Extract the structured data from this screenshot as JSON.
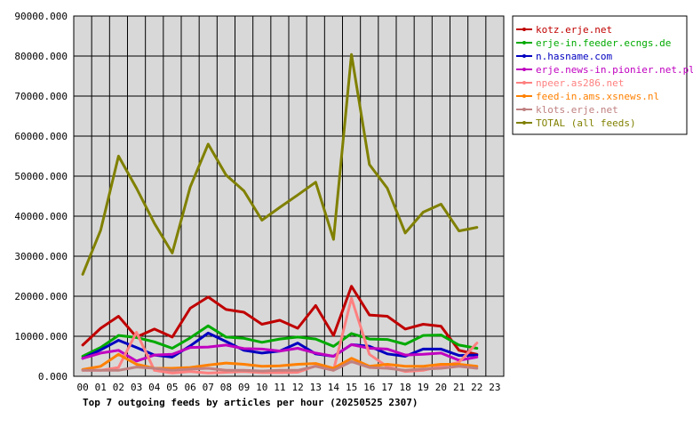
{
  "chart_data": {
    "type": "line",
    "title": "Top 7 outgoing feeds by articles per hour (20250525 2307)",
    "x_ticks": [
      "00",
      "01",
      "02",
      "03",
      "04",
      "05",
      "06",
      "07",
      "08",
      "09",
      "10",
      "11",
      "12",
      "13",
      "14",
      "15",
      "16",
      "17",
      "18",
      "19",
      "20",
      "21",
      "22",
      "23"
    ],
    "y_ticks": [
      "0.000",
      "10000.000",
      "20000.000",
      "30000.000",
      "40000.000",
      "50000.000",
      "60000.000",
      "70000.000",
      "80000.000",
      "90000.000"
    ],
    "ylim": [
      0,
      90000
    ],
    "grid": true,
    "legend_position": "right",
    "colors": {
      "plot_background": "#d8d8d8",
      "grid": "#000000"
    },
    "series": [
      {
        "name": "kotz.erje.net",
        "color": "#c00000",
        "values": [
          7800,
          12000,
          15000,
          9800,
          11800,
          9800,
          17000,
          19800,
          16700,
          16000,
          13000,
          14000,
          12000,
          17700,
          10200,
          22500,
          15300,
          15000,
          11800,
          13000,
          12500,
          6500,
          5500
        ]
      },
      {
        "name": "erje-in.feeder.ecngs.de",
        "color": "#00aa00",
        "values": [
          5000,
          7200,
          10200,
          9700,
          8600,
          7000,
          9600,
          12600,
          9800,
          9500,
          8500,
          9300,
          9800,
          9300,
          7500,
          10700,
          9300,
          9200,
          8000,
          10200,
          10300,
          7800,
          7000
        ]
      },
      {
        "name": "n.hasname.com",
        "color": "#0000c0",
        "values": [
          4500,
          6600,
          9000,
          7200,
          5300,
          4800,
          7600,
          10800,
          8700,
          6500,
          5800,
          6300,
          8300,
          5600,
          5000,
          7900,
          7500,
          5600,
          5000,
          6800,
          6800,
          5200,
          5300
        ]
      },
      {
        "name": "erje.news-in.pionier.net.pl",
        "color": "#c000c0",
        "values": [
          4500,
          5800,
          6500,
          3800,
          5300,
          5500,
          7200,
          7300,
          7800,
          6900,
          6800,
          6300,
          7000,
          5800,
          5000,
          7900,
          7000,
          6800,
          5300,
          5500,
          5800,
          4000,
          4800
        ]
      },
      {
        "name": "npeer.as286.net",
        "color": "#ff8080",
        "values": [
          1500,
          1500,
          2200,
          11000,
          1500,
          800,
          1200,
          800,
          1000,
          1200,
          900,
          900,
          1000,
          2600,
          1500,
          19500,
          5500,
          2400,
          1200,
          1500,
          2500,
          3500,
          8300
        ]
      },
      {
        "name": "feed-in.ams.xsnews.nl",
        "color": "#ff8000",
        "values": [
          1700,
          2500,
          5500,
          3000,
          2000,
          2000,
          2200,
          2800,
          3300,
          3000,
          2500,
          2600,
          3000,
          3200,
          2000,
          4500,
          2500,
          3000,
          2500,
          2500,
          3000,
          3000,
          2500
        ]
      },
      {
        "name": "klots.erje.net",
        "color": "#c08080",
        "values": [
          1500,
          1500,
          1500,
          2300,
          2000,
          1500,
          1800,
          2000,
          1500,
          1500,
          1300,
          1500,
          1500,
          2500,
          1500,
          3700,
          2200,
          2000,
          1500,
          1800,
          2000,
          2500,
          2000
        ]
      },
      {
        "name": "TOTAL (all feeds)",
        "color": "#808000",
        "values": [
          25500,
          36500,
          55000,
          47000,
          38200,
          30800,
          47300,
          58000,
          50300,
          46300,
          39000,
          42200,
          45300,
          48500,
          34200,
          80400,
          52900,
          47000,
          35800,
          41000,
          43000,
          36300,
          37200
        ]
      }
    ]
  }
}
